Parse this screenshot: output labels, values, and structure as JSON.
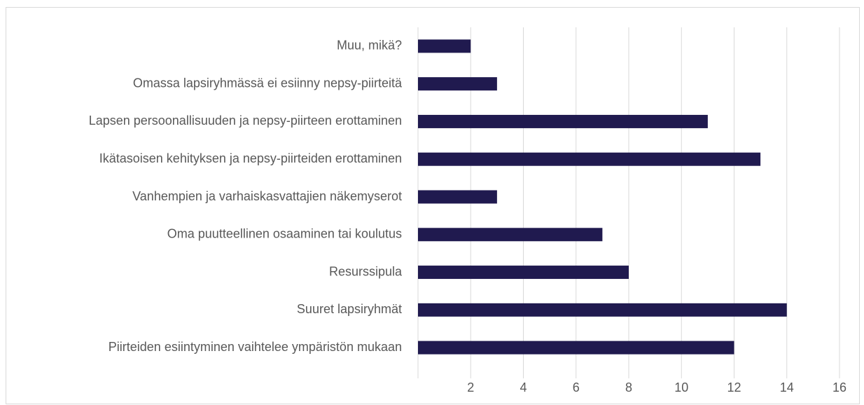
{
  "chart_data": {
    "type": "bar",
    "orientation": "horizontal",
    "categories": [
      "Muu, mikä?",
      "Omassa lapsiryhmässä ei esiinny nepsy-piirteitä",
      "Lapsen persoonallisuuden ja nepsy-piirteen erottaminen",
      "Ikätasoisen kehityksen ja nepsy-piirteiden erottaminen",
      "Vanhempien ja varhaiskasvattajien näkemyserot",
      "Oma puutteellinen osaaminen tai koulutus",
      "Resurssipula",
      "Suuret lapsiryhmät",
      "Piirteiden esiintyminen vaihtelee ympäristön mukaan"
    ],
    "values": [
      2,
      3,
      11,
      13,
      3,
      7,
      8,
      14,
      12
    ],
    "color": "#201a4f",
    "xlim": [
      0,
      16
    ],
    "xticks": [
      2,
      4,
      6,
      8,
      10,
      12,
      14,
      16
    ],
    "grid": true
  }
}
